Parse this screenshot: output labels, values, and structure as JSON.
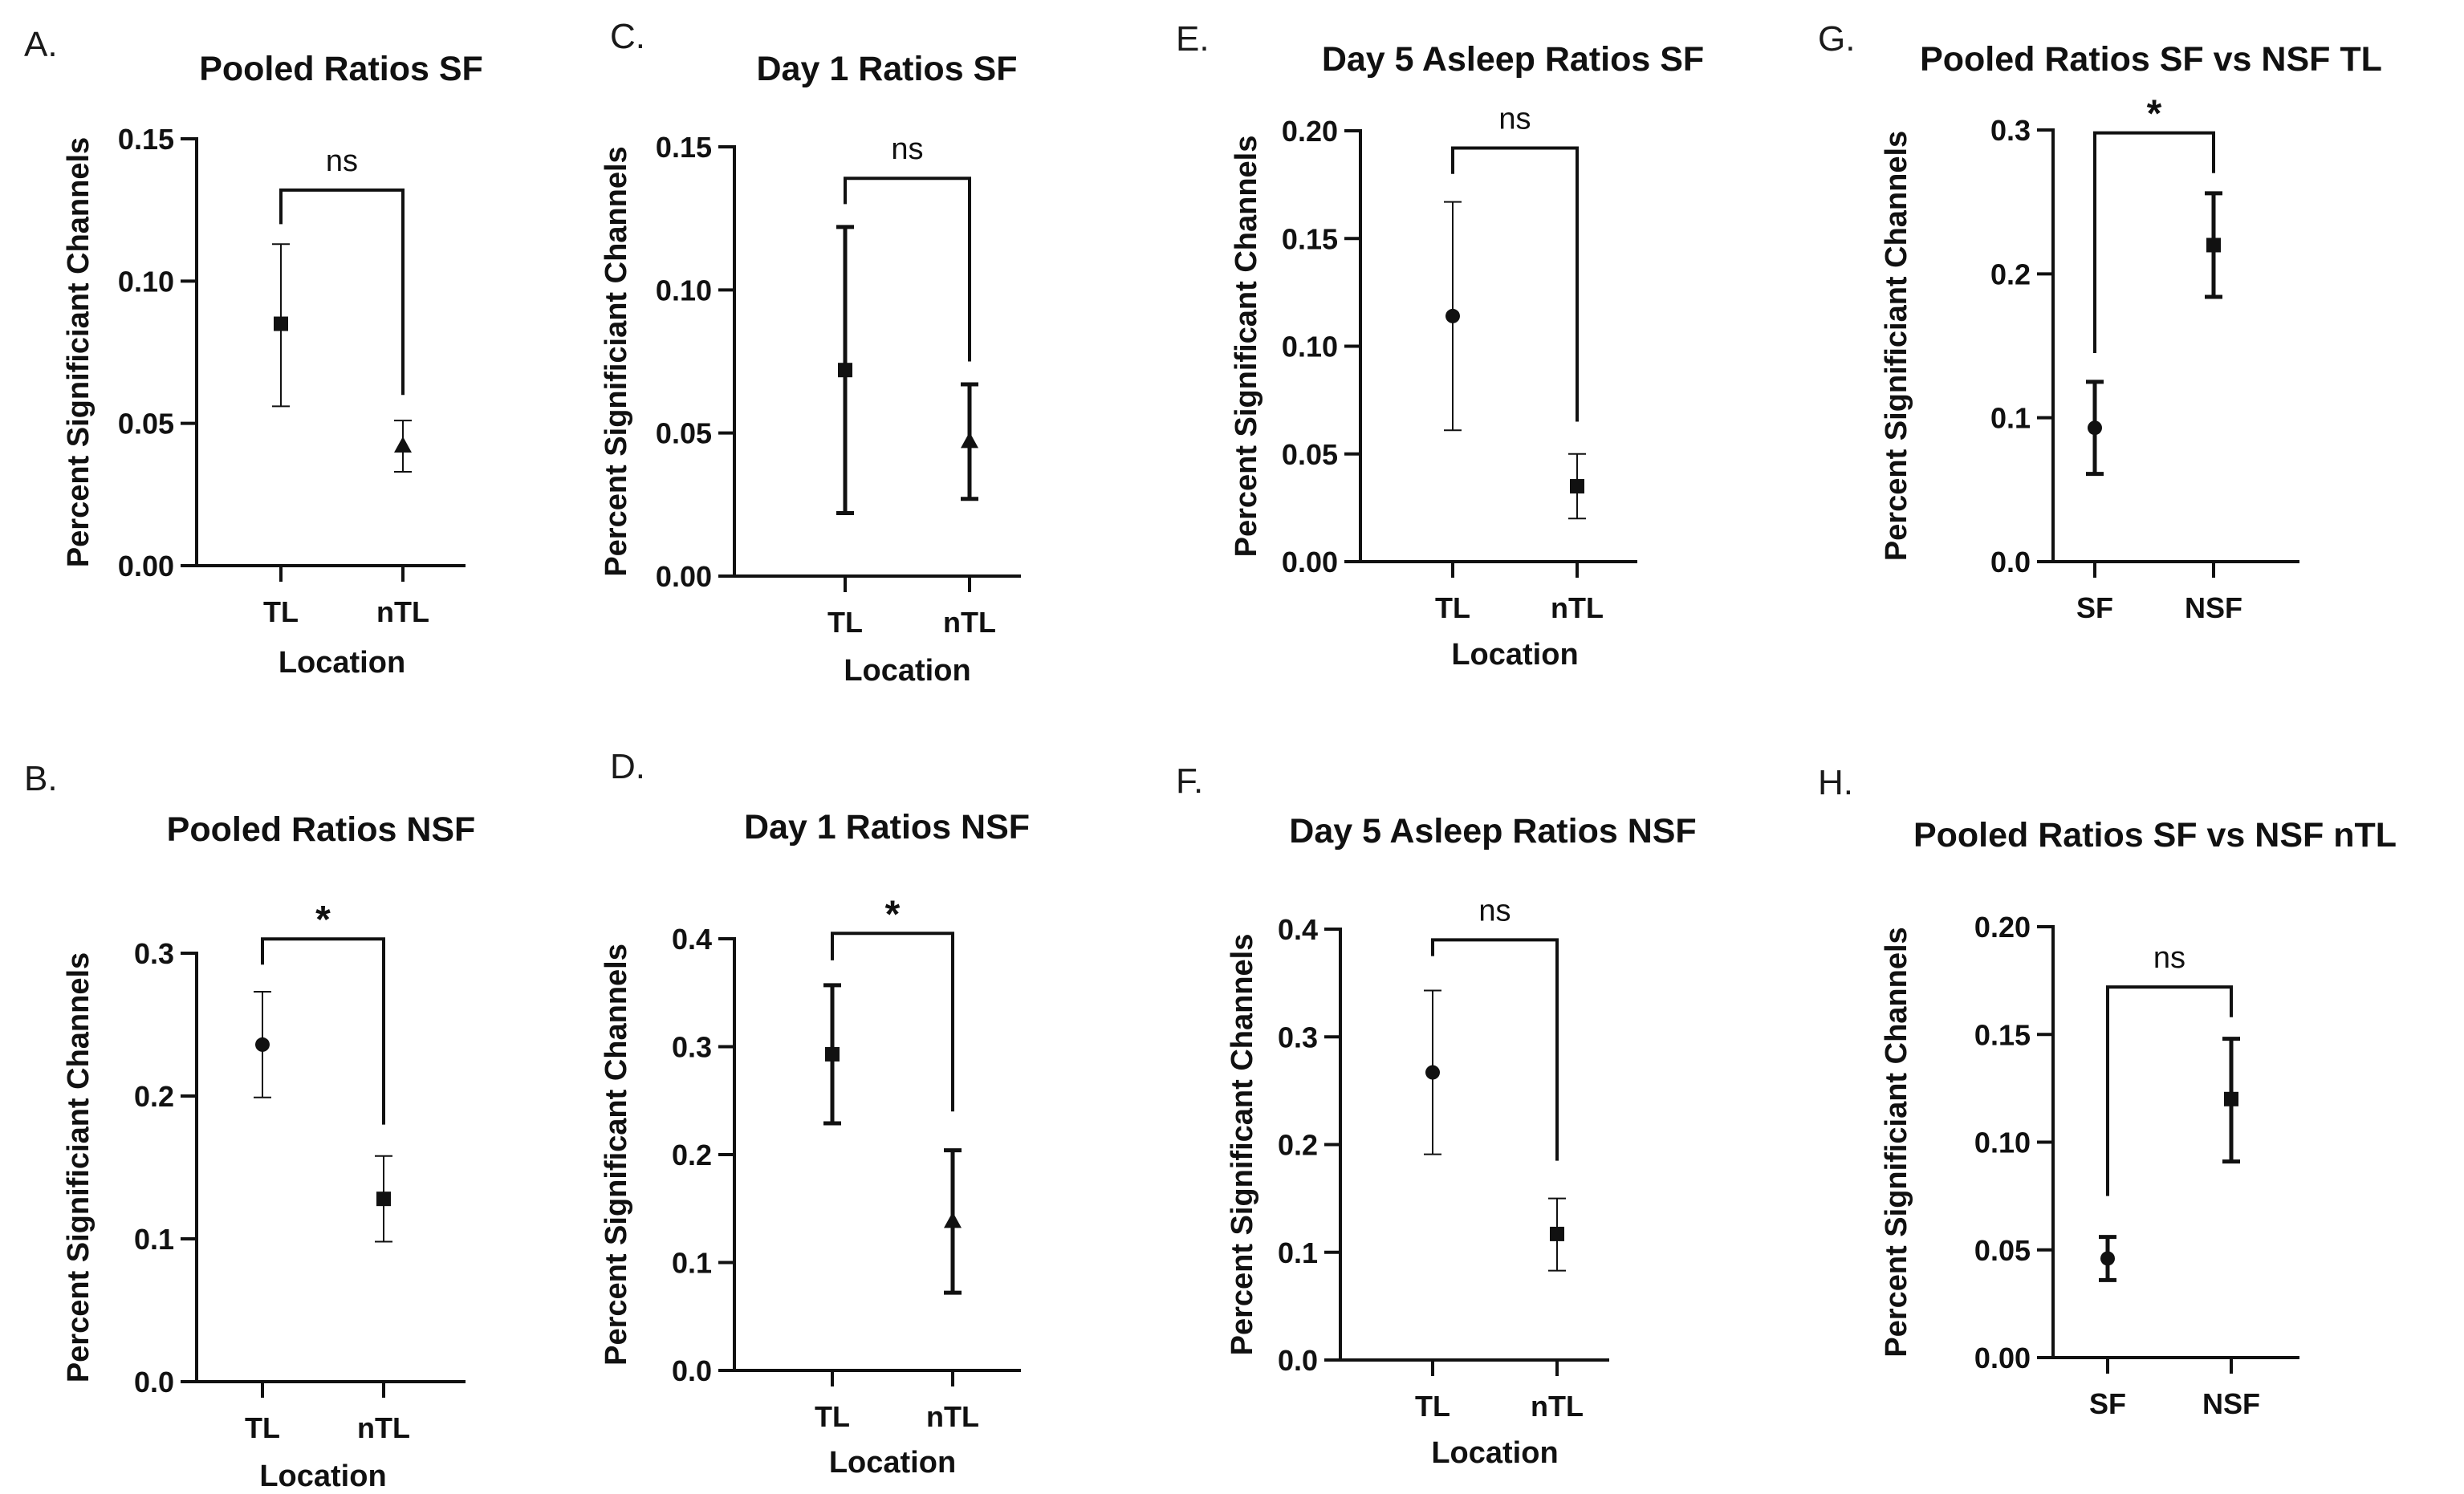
{
  "chart_data": [
    {
      "panel": "A.",
      "type": "scatter",
      "title": "Pooled Ratios SF",
      "xlabel": "Location",
      "ylabel": "Percent Significiant Channels",
      "categories": [
        "TL",
        "nTL"
      ],
      "ylim": [
        0,
        0.15
      ],
      "yticks": [
        "0.00",
        "0.05",
        "0.10",
        "0.15"
      ],
      "tickvals": [
        0,
        0.05,
        0.1,
        0.15
      ],
      "points": [
        {
          "category": "TL",
          "value": 0.085,
          "err_low": 0.056,
          "err_high": 0.113,
          "marker": "square"
        },
        {
          "category": "nTL",
          "value": 0.042,
          "err_low": 0.033,
          "err_high": 0.051,
          "marker": "triangle"
        }
      ],
      "significance": {
        "label": "ns",
        "bracket_top": 0.132,
        "left_end": 0.12,
        "right_end": 0.06
      },
      "error_style": "thin"
    },
    {
      "panel": "B.",
      "type": "scatter",
      "title": "Pooled Ratios NSF",
      "xlabel": "Location",
      "ylabel": "Percent Significiant Channels",
      "categories": [
        "TL",
        "nTL"
      ],
      "ylim": [
        0,
        0.3
      ],
      "yticks": [
        "0.0",
        "0.1",
        "0.2",
        "0.3"
      ],
      "tickvals": [
        0,
        0.1,
        0.2,
        0.3
      ],
      "points": [
        {
          "category": "TL",
          "value": 0.236,
          "err_low": 0.199,
          "err_high": 0.273,
          "marker": "circle"
        },
        {
          "category": "nTL",
          "value": 0.128,
          "err_low": 0.098,
          "err_high": 0.158,
          "marker": "square"
        }
      ],
      "significance": {
        "label": "*",
        "bracket_top": 0.31,
        "left_end": 0.292,
        "right_end": 0.18
      },
      "error_style": "thin"
    },
    {
      "panel": "C.",
      "type": "scatter",
      "title": "Day 1 Ratios SF",
      "xlabel": "Location",
      "ylabel": "Percent Significiant Channels",
      "categories": [
        "TL",
        "nTL"
      ],
      "ylim": [
        0,
        0.15
      ],
      "yticks": [
        "0.00",
        "0.05",
        "0.10",
        "0.15"
      ],
      "tickvals": [
        0,
        0.05,
        0.1,
        0.15
      ],
      "points": [
        {
          "category": "TL",
          "value": 0.072,
          "err_low": 0.022,
          "err_high": 0.122,
          "marker": "square"
        },
        {
          "category": "nTL",
          "value": 0.047,
          "err_low": 0.027,
          "err_high": 0.067,
          "marker": "triangle"
        }
      ],
      "significance": {
        "label": "ns",
        "bracket_top": 0.139,
        "left_end": 0.13,
        "right_end": 0.075
      },
      "error_style": "thick"
    },
    {
      "panel": "D.",
      "type": "scatter",
      "title": "Day 1 Ratios NSF",
      "xlabel": "Location",
      "ylabel": "Percent Significant Channels",
      "categories": [
        "TL",
        "nTL"
      ],
      "ylim": [
        0,
        0.4
      ],
      "yticks": [
        "0.0",
        "0.1",
        "0.2",
        "0.3",
        "0.4"
      ],
      "tickvals": [
        0,
        0.1,
        0.2,
        0.3,
        0.4
      ],
      "points": [
        {
          "category": "TL",
          "value": 0.293,
          "err_low": 0.229,
          "err_high": 0.357,
          "marker": "square"
        },
        {
          "category": "nTL",
          "value": 0.138,
          "err_low": 0.072,
          "err_high": 0.204,
          "marker": "triangle"
        }
      ],
      "significance": {
        "label": "*",
        "bracket_top": 0.405,
        "left_end": 0.38,
        "right_end": 0.24
      },
      "error_style": "thick"
    },
    {
      "panel": "E.",
      "type": "scatter",
      "title": "Day 5 Asleep Ratios SF",
      "xlabel": "Location",
      "ylabel": "Percent Significant Channels",
      "categories": [
        "TL",
        "nTL"
      ],
      "ylim": [
        0,
        0.2
      ],
      "yticks": [
        "0.00",
        "0.05",
        "0.10",
        "0.15",
        "0.20"
      ],
      "tickvals": [
        0,
        0.05,
        0.1,
        0.15,
        0.2
      ],
      "points": [
        {
          "category": "TL",
          "value": 0.114,
          "err_low": 0.061,
          "err_high": 0.167,
          "marker": "circle"
        },
        {
          "category": "nTL",
          "value": 0.035,
          "err_low": 0.02,
          "err_high": 0.05,
          "marker": "square"
        }
      ],
      "significance": {
        "label": "ns",
        "bracket_top": 0.192,
        "left_end": 0.18,
        "right_end": 0.065
      },
      "error_style": "thin"
    },
    {
      "panel": "F.",
      "type": "scatter",
      "title": "Day 5 Asleep Ratios NSF",
      "xlabel": "Location",
      "ylabel": "Percent Significant Channels",
      "categories": [
        "TL",
        "nTL"
      ],
      "ylim": [
        0,
        0.4
      ],
      "yticks": [
        "0.0",
        "0.1",
        "0.2",
        "0.3",
        "0.4"
      ],
      "tickvals": [
        0,
        0.1,
        0.2,
        0.3,
        0.4
      ],
      "points": [
        {
          "category": "TL",
          "value": 0.267,
          "err_low": 0.191,
          "err_high": 0.343,
          "marker": "circle"
        },
        {
          "category": "nTL",
          "value": 0.117,
          "err_low": 0.083,
          "err_high": 0.15,
          "marker": "square"
        }
      ],
      "significance": {
        "label": "ns",
        "bracket_top": 0.39,
        "left_end": 0.375,
        "right_end": 0.185
      },
      "error_style": "thin"
    },
    {
      "panel": "G.",
      "type": "scatter",
      "title": "Pooled Ratios SF vs NSF TL",
      "xlabel": "",
      "ylabel": "Percent Significiant Channels",
      "categories": [
        "SF",
        "NSF"
      ],
      "ylim": [
        0,
        0.3
      ],
      "yticks": [
        "0.0",
        "0.1",
        "0.2",
        "0.3"
      ],
      "tickvals": [
        0,
        0.1,
        0.2,
        0.3
      ],
      "points": [
        {
          "category": "SF",
          "value": 0.093,
          "err_low": 0.061,
          "err_high": 0.125,
          "marker": "circle"
        },
        {
          "category": "NSF",
          "value": 0.22,
          "err_low": 0.184,
          "err_high": 0.256,
          "marker": "square"
        }
      ],
      "significance": {
        "label": "*",
        "bracket_top": 0.298,
        "left_end": 0.145,
        "right_end": 0.27
      },
      "error_style": "thick"
    },
    {
      "panel": "H.",
      "type": "scatter",
      "title": "Pooled Ratios SF vs NSF nTL",
      "xlabel": "",
      "ylabel": "Percent Significiant Channels",
      "categories": [
        "SF",
        "NSF"
      ],
      "ylim": [
        0,
        0.2
      ],
      "yticks": [
        "0.00",
        "0.05",
        "0.10",
        "0.15",
        "0.20"
      ],
      "tickvals": [
        0,
        0.05,
        0.1,
        0.15,
        0.2
      ],
      "points": [
        {
          "category": "SF",
          "value": 0.046,
          "err_low": 0.036,
          "err_high": 0.056,
          "marker": "circle"
        },
        {
          "category": "NSF",
          "value": 0.12,
          "err_low": 0.091,
          "err_high": 0.148,
          "marker": "square"
        }
      ],
      "significance": {
        "label": "ns",
        "bracket_top": 0.172,
        "left_end": 0.075,
        "right_end": 0.158
      },
      "error_style": "thick"
    }
  ]
}
